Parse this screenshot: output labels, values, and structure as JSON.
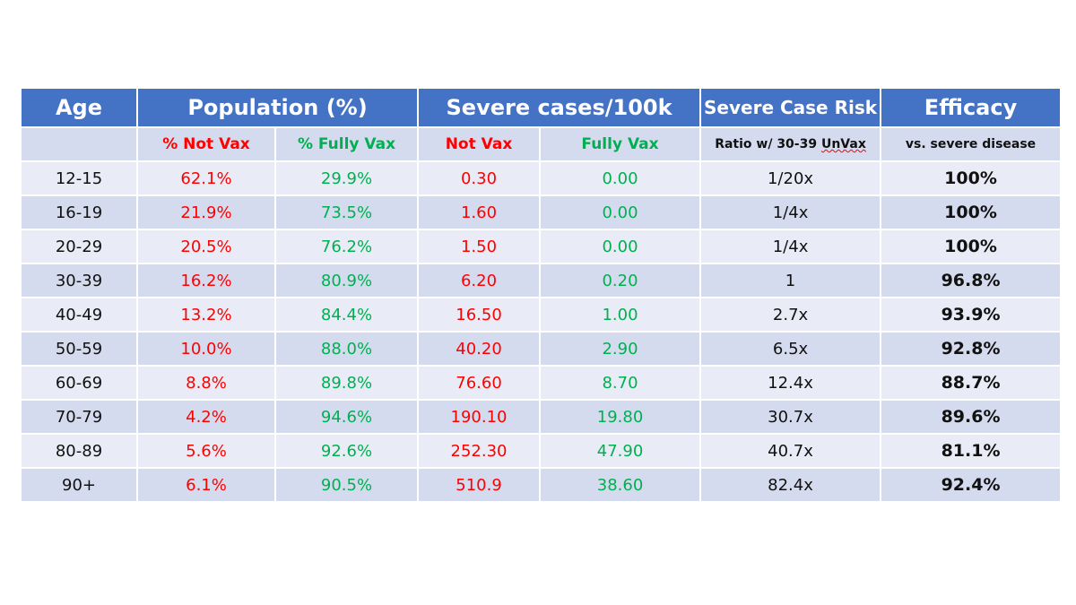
{
  "header": {
    "age": "Age",
    "population": "Population (%)",
    "severe_cases": "Severe cases/100k",
    "risk": "Severe Case Risk",
    "efficacy": "Efficacy"
  },
  "subheader": {
    "age": "",
    "pop_not_vax": "% Not Vax",
    "pop_fully_vax": "% Fully Vax",
    "cases_not_vax": "Not Vax",
    "cases_fully_vax": "Fully Vax",
    "risk_prefix": "Ratio w/ 30-39 ",
    "risk_suffix": "UnVax",
    "efficacy": "vs. severe disease"
  },
  "rows": [
    {
      "age": "12-15",
      "pop_not_vax": "62.1%",
      "pop_fully_vax": "29.9%",
      "cases_not_vax": "0.30",
      "cases_fully_vax": "0.00",
      "risk": "1/20x",
      "efficacy": "100%"
    },
    {
      "age": "16-19",
      "pop_not_vax": "21.9%",
      "pop_fully_vax": "73.5%",
      "cases_not_vax": "1.60",
      "cases_fully_vax": "0.00",
      "risk": "1/4x",
      "efficacy": "100%"
    },
    {
      "age": "20-29",
      "pop_not_vax": "20.5%",
      "pop_fully_vax": "76.2%",
      "cases_not_vax": "1.50",
      "cases_fully_vax": "0.00",
      "risk": "1/4x",
      "efficacy": "100%"
    },
    {
      "age": "30-39",
      "pop_not_vax": "16.2%",
      "pop_fully_vax": "80.9%",
      "cases_not_vax": "6.20",
      "cases_fully_vax": "0.20",
      "risk": "1",
      "efficacy": "96.8%"
    },
    {
      "age": "40-49",
      "pop_not_vax": "13.2%",
      "pop_fully_vax": "84.4%",
      "cases_not_vax": "16.50",
      "cases_fully_vax": "1.00",
      "risk": "2.7x",
      "efficacy": "93.9%"
    },
    {
      "age": "50-59",
      "pop_not_vax": "10.0%",
      "pop_fully_vax": "88.0%",
      "cases_not_vax": "40.20",
      "cases_fully_vax": "2.90",
      "risk": "6.5x",
      "efficacy": "92.8%"
    },
    {
      "age": "60-69",
      "pop_not_vax": "8.8%",
      "pop_fully_vax": "89.8%",
      "cases_not_vax": "76.60",
      "cases_fully_vax": "8.70",
      "risk": "12.4x",
      "efficacy": "88.7%"
    },
    {
      "age": "70-79",
      "pop_not_vax": "4.2%",
      "pop_fully_vax": "94.6%",
      "cases_not_vax": "190.10",
      "cases_fully_vax": "19.80",
      "risk": "30.7x",
      "efficacy": "89.6%"
    },
    {
      "age": "80-89",
      "pop_not_vax": "5.6%",
      "pop_fully_vax": "92.6%",
      "cases_not_vax": "252.30",
      "cases_fully_vax": "47.90",
      "risk": "40.7x",
      "efficacy": "81.1%"
    },
    {
      "age": "90+",
      "pop_not_vax": "6.1%",
      "pop_fully_vax": "90.5%",
      "cases_not_vax": "510.9",
      "cases_fully_vax": "38.60",
      "risk": "82.4x",
      "efficacy": "92.4%"
    }
  ],
  "colors": {
    "header_bg": "#4472c4",
    "shade_bg": "#d5dbee",
    "light_bg": "#e9ecf6",
    "not_vax": "#ff0000",
    "fully_vax": "#00b050"
  }
}
